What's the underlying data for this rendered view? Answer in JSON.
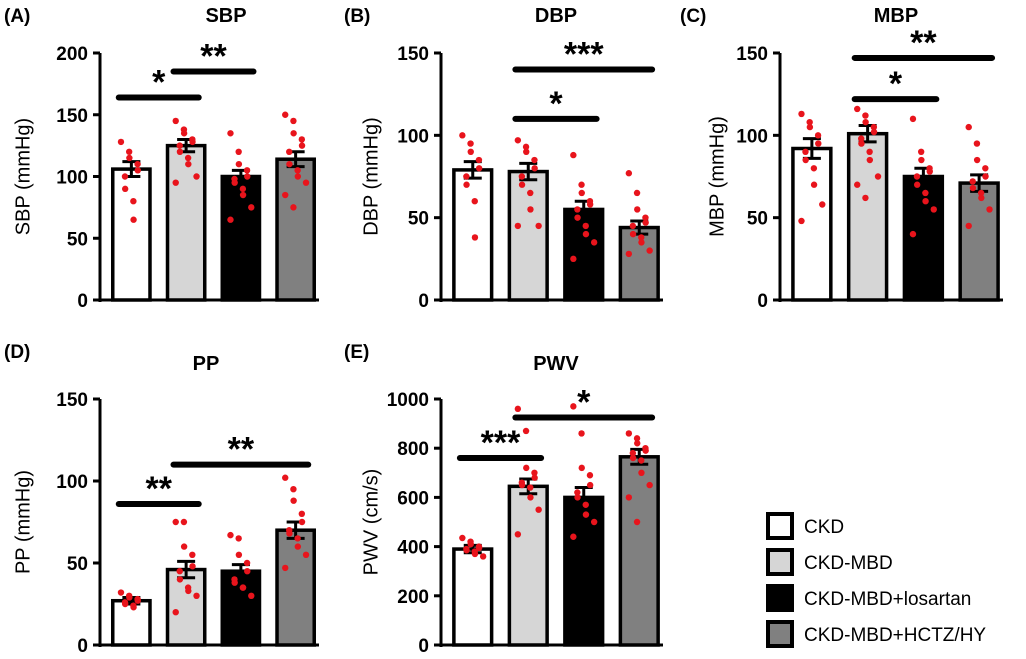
{
  "colors": {
    "CKD": "#ffffff",
    "CKD-MBD": "#d6d6d6",
    "CKD-MBD+losartan": "#000000",
    "CKD-MBD+HCTZ/HY": "#808080",
    "dots": "#e8141c",
    "axis": "#000000"
  },
  "legend": {
    "items": [
      {
        "key": "CKD",
        "label": "CKD"
      },
      {
        "key": "CKD-MBD",
        "label": "CKD-MBD"
      },
      {
        "key": "CKD-MBD+losartan",
        "label": "CKD-MBD+losartan"
      },
      {
        "key": "CKD-MBD+HCTZ/HY",
        "label": "CKD-MBD+HCTZ/HY"
      }
    ]
  },
  "chart_data": [
    {
      "type": "bar",
      "panel_label": "(A)",
      "title": "SBP",
      "ylabel": "SBP (mmHg)",
      "ylim": [
        0,
        200
      ],
      "yticks": [
        "0",
        "50",
        "100",
        "150",
        "200"
      ],
      "categories": [
        "CKD",
        "CKD-MBD",
        "CKD-MBD+losartan",
        "CKD-MBD+HCTZ/HY"
      ],
      "values": [
        106,
        125,
        100,
        114
      ],
      "errors": [
        6,
        5,
        5,
        6
      ],
      "points": [
        [
          128,
          120,
          115,
          110,
          105,
          100,
          90,
          80,
          65
        ],
        [
          145,
          138,
          135,
          130,
          128,
          125,
          120,
          115,
          110,
          100,
          95
        ],
        [
          135,
          120,
          110,
          105,
          100,
          98,
          95,
          90,
          85,
          75,
          65
        ],
        [
          150,
          145,
          135,
          130,
          125,
          120,
          110,
          105,
          100,
          95,
          85,
          75
        ]
      ],
      "significance": [
        {
          "from": 0,
          "to": 1,
          "label": "*",
          "y": 164
        },
        {
          "from": 1,
          "to": 2,
          "label": "**",
          "y": 185
        }
      ]
    },
    {
      "type": "bar",
      "panel_label": "(B)",
      "title": "DBP",
      "ylabel": "DBP (mmHg)",
      "ylim": [
        0,
        150
      ],
      "yticks": [
        "0",
        "50",
        "100",
        "150"
      ],
      "categories": [
        "CKD",
        "CKD-MBD",
        "CKD-MBD+losartan",
        "CKD-MBD+HCTZ/HY"
      ],
      "values": [
        79,
        78,
        55,
        44
      ],
      "errors": [
        5,
        5,
        5,
        4
      ],
      "points": [
        [
          100,
          95,
          90,
          85,
          80,
          75,
          70,
          60,
          38
        ],
        [
          97,
          93,
          90,
          85,
          80,
          75,
          70,
          65,
          55,
          45,
          45
        ],
        [
          88,
          70,
          65,
          60,
          58,
          55,
          50,
          45,
          40,
          35,
          25
        ],
        [
          77,
          65,
          55,
          50,
          47,
          45,
          40,
          38,
          35,
          30,
          28
        ]
      ],
      "significance": [
        {
          "from": 1,
          "to": 2,
          "label": "*",
          "y": 110
        },
        {
          "from": 1,
          "to": 3,
          "label": "***",
          "y": 140
        }
      ]
    },
    {
      "type": "bar",
      "panel_label": "(C)",
      "title": "MBP",
      "ylabel": "MBP (mmHg)",
      "ylim": [
        0,
        150
      ],
      "yticks": [
        "0",
        "50",
        "100",
        "150"
      ],
      "categories": [
        "CKD",
        "CKD-MBD",
        "CKD-MBD+losartan",
        "CKD-MBD+HCTZ/HY"
      ],
      "values": [
        92,
        101,
        75,
        71
      ],
      "errors": [
        6,
        5,
        5,
        5
      ],
      "points": [
        [
          113,
          108,
          105,
          100,
          95,
          90,
          85,
          80,
          70,
          58,
          48
        ],
        [
          116,
          112,
          108,
          105,
          102,
          98,
          95,
          90,
          85,
          75,
          70,
          62
        ],
        [
          110,
          90,
          85,
          80,
          78,
          75,
          70,
          65,
          60,
          55,
          40
        ],
        [
          105,
          95,
          85,
          80,
          75,
          72,
          68,
          65,
          62,
          55,
          45
        ]
      ],
      "significance": [
        {
          "from": 1,
          "to": 2,
          "label": "*",
          "y": 122
        },
        {
          "from": 1,
          "to": 3,
          "label": "**",
          "y": 147
        }
      ]
    },
    {
      "type": "bar",
      "panel_label": "(D)",
      "title": "PP",
      "ylabel": "PP (mmHg)",
      "ylim": [
        0,
        150
      ],
      "yticks": [
        "0",
        "50",
        "100",
        "150"
      ],
      "categories": [
        "CKD",
        "CKD-MBD",
        "CKD-MBD+losartan",
        "CKD-MBD+HCTZ/HY"
      ],
      "values": [
        27,
        46,
        45,
        70
      ],
      "errors": [
        2,
        5,
        4,
        5
      ],
      "points": [
        [
          32,
          30,
          29,
          28,
          27,
          26,
          25,
          24,
          23
        ],
        [
          75,
          75,
          60,
          55,
          48,
          45,
          40,
          35,
          33,
          30,
          20
        ],
        [
          67,
          65,
          55,
          50,
          45,
          40,
          38,
          35,
          35,
          30
        ],
        [
          102,
          95,
          88,
          80,
          75,
          70,
          68,
          65,
          60,
          55,
          47
        ]
      ],
      "significance": [
        {
          "from": 0,
          "to": 1,
          "label": "**",
          "y": 86
        },
        {
          "from": 1,
          "to": 3,
          "label": "**",
          "y": 110
        }
      ]
    },
    {
      "type": "bar",
      "panel_label": "(E)",
      "title": "PWV",
      "ylabel": "PWV (cm/s)",
      "ylim": [
        0,
        1000
      ],
      "yticks": [
        "0",
        "200",
        "400",
        "600",
        "800",
        "1000"
      ],
      "categories": [
        "CKD",
        "CKD-MBD",
        "CKD-MBD+losartan",
        "CKD-MBD+HCTZ/HY"
      ],
      "values": [
        390,
        645,
        600,
        765
      ],
      "errors": [
        15,
        30,
        40,
        30
      ],
      "points": [
        [
          435,
          420,
          410,
          400,
          395,
          390,
          385,
          380,
          370,
          360
        ],
        [
          960,
          870,
          720,
          700,
          680,
          660,
          650,
          640,
          600,
          550,
          450
        ],
        [
          970,
          860,
          720,
          690,
          650,
          620,
          600,
          570,
          530,
          500,
          440
        ],
        [
          860,
          840,
          820,
          800,
          790,
          780,
          760,
          750,
          700,
          650,
          600,
          500
        ]
      ],
      "significance": [
        {
          "from": 0,
          "to": 1,
          "label": "***",
          "y": 760
        },
        {
          "from": 1,
          "to": 3,
          "label": "*",
          "y": 925
        }
      ]
    }
  ]
}
